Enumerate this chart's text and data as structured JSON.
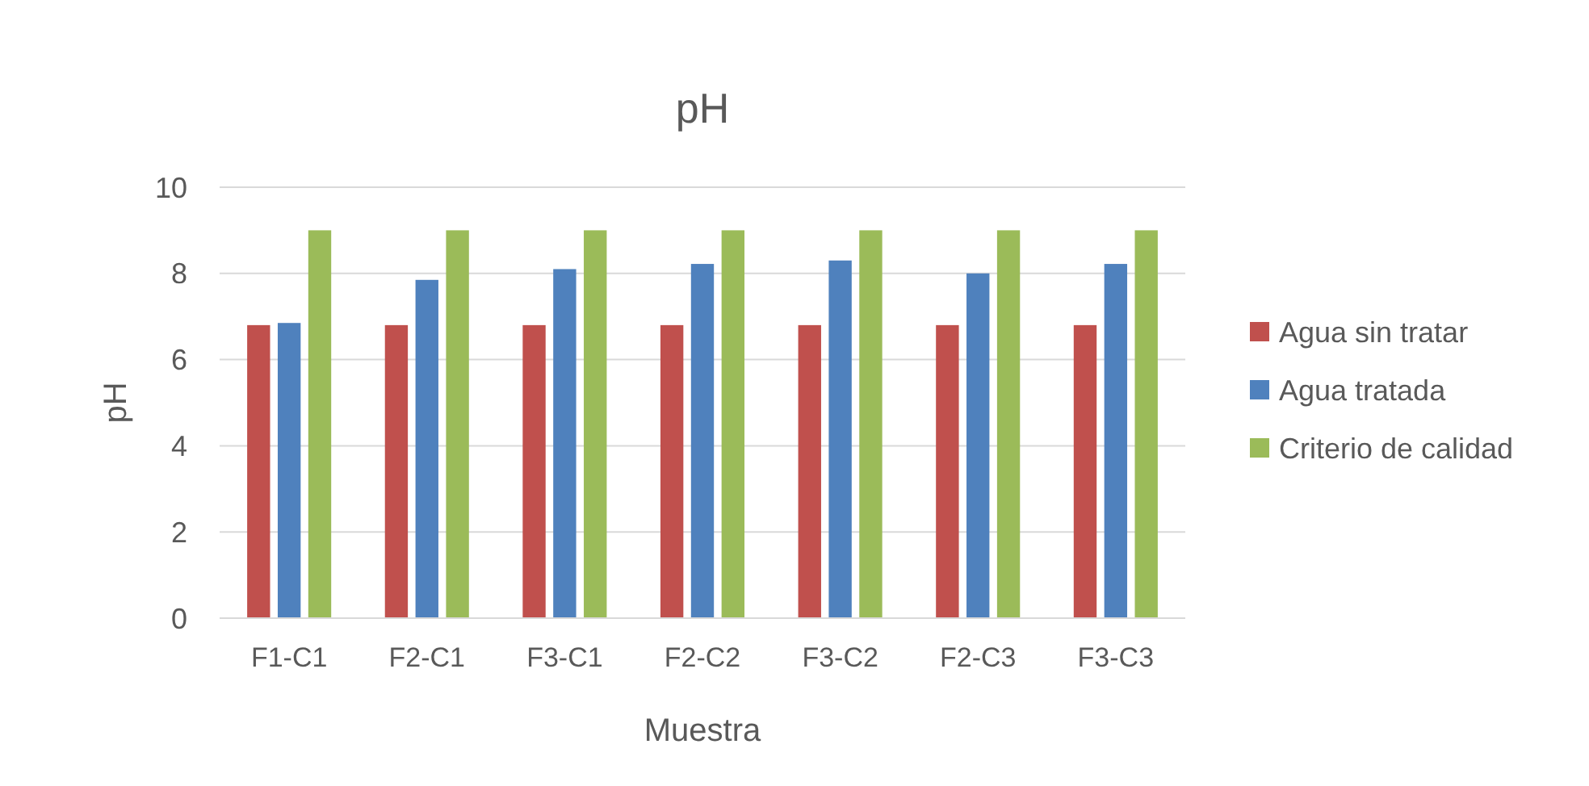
{
  "chart_data": {
    "type": "bar",
    "title": "pH",
    "xlabel": "Muestra",
    "ylabel": "pH",
    "categories": [
      "F1-C1",
      "F2-C1",
      "F3-C1",
      "F2-C2",
      "F3-C2",
      "F2-C3",
      "F3-C3"
    ],
    "series": [
      {
        "name": "Agua sin tratar",
        "color": "#c0504d",
        "values": [
          6.8,
          6.8,
          6.8,
          6.8,
          6.8,
          6.8,
          6.8
        ]
      },
      {
        "name": "Agua tratada",
        "color": "#4f81bd",
        "values": [
          6.85,
          7.85,
          8.1,
          8.22,
          8.3,
          8.0,
          8.22
        ]
      },
      {
        "name": "Criterio de calidad",
        "color": "#9bbb59",
        "values": [
          9,
          9,
          9,
          9,
          9,
          9,
          9
        ]
      }
    ],
    "ylim": [
      0,
      10
    ],
    "yticks": [
      0,
      2,
      4,
      6,
      8,
      10
    ],
    "grid": "y",
    "legend": "right"
  }
}
